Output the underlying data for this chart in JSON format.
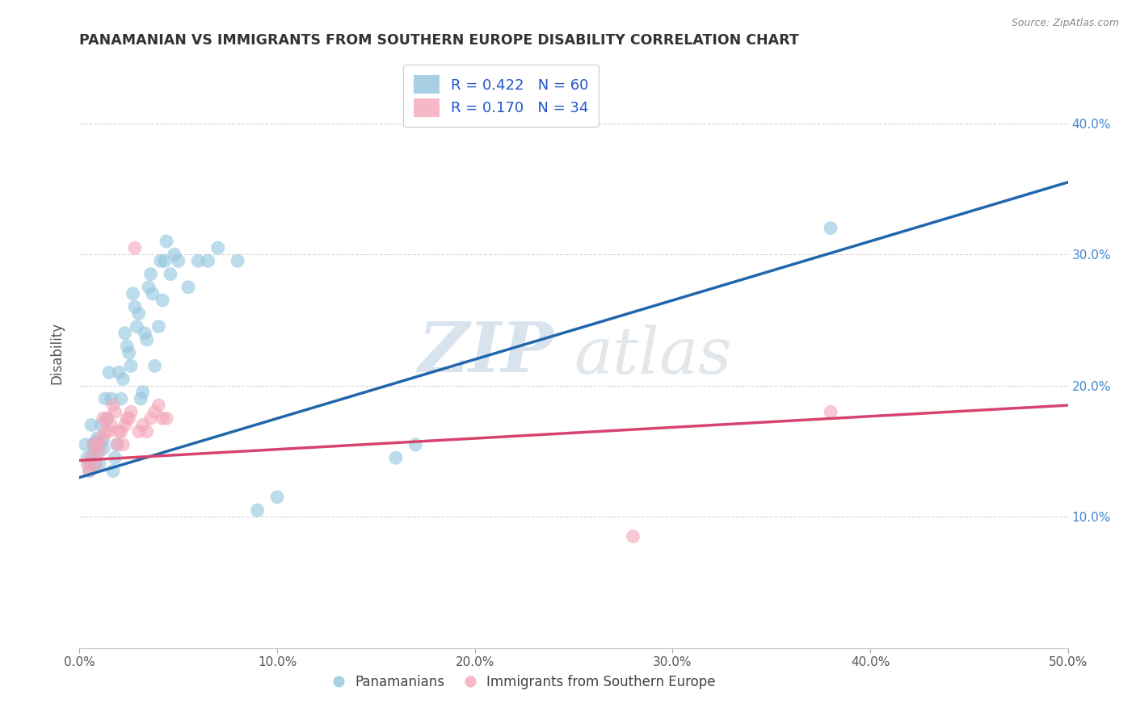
{
  "title": "PANAMANIAN VS IMMIGRANTS FROM SOUTHERN EUROPE DISABILITY CORRELATION CHART",
  "source": "Source: ZipAtlas.com",
  "xlabel_label": "Panamanians",
  "ylabel_label": "Immigrants from Southern Europe",
  "ylabel": "Disability",
  "xlim": [
    0.0,
    0.5
  ],
  "ylim": [
    0.0,
    0.45
  ],
  "xticks": [
    0.0,
    0.1,
    0.2,
    0.3,
    0.4,
    0.5
  ],
  "yticks": [
    0.1,
    0.2,
    0.3,
    0.4
  ],
  "xticklabels": [
    "0.0%",
    "10.0%",
    "20.0%",
    "30.0%",
    "40.0%",
    "50.0%"
  ],
  "yticklabels": [
    "10.0%",
    "20.0%",
    "30.0%",
    "40.0%"
  ],
  "r_blue": 0.422,
  "n_blue": 60,
  "r_pink": 0.17,
  "n_pink": 34,
  "blue_color": "#92c5de",
  "pink_color": "#f4a6b8",
  "line_blue": "#2166ac",
  "line_pink": "#d6446e",
  "blue_scatter": [
    [
      0.003,
      0.155
    ],
    [
      0.004,
      0.145
    ],
    [
      0.005,
      0.14
    ],
    [
      0.005,
      0.135
    ],
    [
      0.006,
      0.17
    ],
    [
      0.007,
      0.155
    ],
    [
      0.007,
      0.148
    ],
    [
      0.008,
      0.14
    ],
    [
      0.008,
      0.157
    ],
    [
      0.009,
      0.16
    ],
    [
      0.009,
      0.148
    ],
    [
      0.01,
      0.155
    ],
    [
      0.01,
      0.14
    ],
    [
      0.011,
      0.17
    ],
    [
      0.012,
      0.158
    ],
    [
      0.012,
      0.152
    ],
    [
      0.013,
      0.19
    ],
    [
      0.014,
      0.175
    ],
    [
      0.015,
      0.21
    ],
    [
      0.016,
      0.19
    ],
    [
      0.017,
      0.135
    ],
    [
      0.018,
      0.145
    ],
    [
      0.019,
      0.155
    ],
    [
      0.02,
      0.21
    ],
    [
      0.021,
      0.19
    ],
    [
      0.022,
      0.205
    ],
    [
      0.023,
      0.24
    ],
    [
      0.024,
      0.23
    ],
    [
      0.025,
      0.225
    ],
    [
      0.026,
      0.215
    ],
    [
      0.027,
      0.27
    ],
    [
      0.028,
      0.26
    ],
    [
      0.029,
      0.245
    ],
    [
      0.03,
      0.255
    ],
    [
      0.031,
      0.19
    ],
    [
      0.032,
      0.195
    ],
    [
      0.033,
      0.24
    ],
    [
      0.034,
      0.235
    ],
    [
      0.035,
      0.275
    ],
    [
      0.036,
      0.285
    ],
    [
      0.037,
      0.27
    ],
    [
      0.038,
      0.215
    ],
    [
      0.04,
      0.245
    ],
    [
      0.041,
      0.295
    ],
    [
      0.042,
      0.265
    ],
    [
      0.043,
      0.295
    ],
    [
      0.044,
      0.31
    ],
    [
      0.046,
      0.285
    ],
    [
      0.048,
      0.3
    ],
    [
      0.05,
      0.295
    ],
    [
      0.055,
      0.275
    ],
    [
      0.06,
      0.295
    ],
    [
      0.065,
      0.295
    ],
    [
      0.07,
      0.305
    ],
    [
      0.08,
      0.295
    ],
    [
      0.09,
      0.105
    ],
    [
      0.1,
      0.115
    ],
    [
      0.16,
      0.145
    ],
    [
      0.17,
      0.155
    ],
    [
      0.38,
      0.32
    ]
  ],
  "pink_scatter": [
    [
      0.004,
      0.14
    ],
    [
      0.005,
      0.135
    ],
    [
      0.006,
      0.145
    ],
    [
      0.007,
      0.155
    ],
    [
      0.008,
      0.14
    ],
    [
      0.009,
      0.155
    ],
    [
      0.01,
      0.15
    ],
    [
      0.011,
      0.16
    ],
    [
      0.012,
      0.175
    ],
    [
      0.013,
      0.165
    ],
    [
      0.014,
      0.175
    ],
    [
      0.015,
      0.165
    ],
    [
      0.016,
      0.17
    ],
    [
      0.017,
      0.185
    ],
    [
      0.018,
      0.18
    ],
    [
      0.019,
      0.155
    ],
    [
      0.02,
      0.165
    ],
    [
      0.021,
      0.165
    ],
    [
      0.022,
      0.155
    ],
    [
      0.023,
      0.17
    ],
    [
      0.024,
      0.175
    ],
    [
      0.025,
      0.175
    ],
    [
      0.026,
      0.18
    ],
    [
      0.028,
      0.305
    ],
    [
      0.03,
      0.165
    ],
    [
      0.032,
      0.17
    ],
    [
      0.034,
      0.165
    ],
    [
      0.036,
      0.175
    ],
    [
      0.038,
      0.18
    ],
    [
      0.04,
      0.185
    ],
    [
      0.042,
      0.175
    ],
    [
      0.044,
      0.175
    ],
    [
      0.28,
      0.085
    ],
    [
      0.38,
      0.18
    ]
  ],
  "blue_line_x": [
    0.0,
    0.5
  ],
  "blue_line_y": [
    0.13,
    0.355
  ],
  "pink_line_x": [
    0.0,
    0.5
  ],
  "pink_line_y": [
    0.143,
    0.185
  ],
  "watermark_zip": "ZIP",
  "watermark_atlas": "atlas",
  "background_color": "#ffffff",
  "grid_color": "#cccccc",
  "right_tick_color": "#4488cc",
  "title_color": "#333333",
  "source_color": "#888888"
}
